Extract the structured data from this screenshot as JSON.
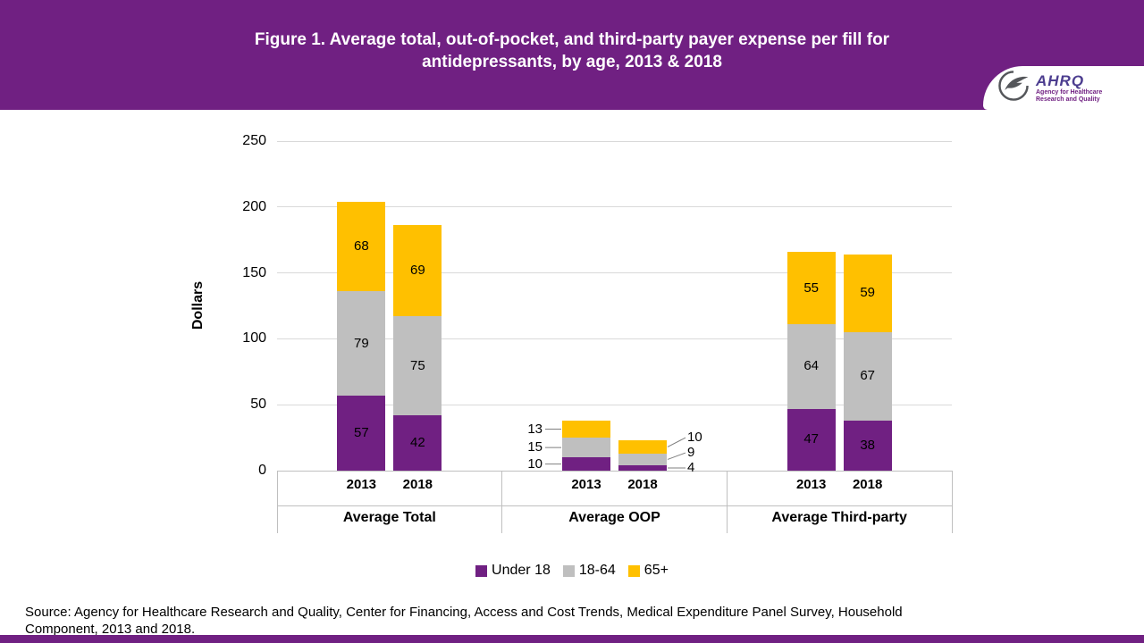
{
  "header": {
    "title_lines": [
      "Figure 1. Average total, out-of-pocket, and third-party payer expense per fill for",
      "antidepressants, by age, 2013 & 2018"
    ],
    "logo": {
      "name": "AHRQ",
      "tagline_lines": [
        "Agency for Healthcare",
        "Research and Quality"
      ]
    }
  },
  "chart_data": {
    "type": "bar",
    "stacked": true,
    "title": "Figure 1. Average total, out-of-pocket, and third-party payer expense per fill for antidepressants, by age, 2013 & 2018",
    "xlabel": "",
    "ylabel": "Dollars",
    "ylim": [
      0,
      250
    ],
    "yticks": [
      0,
      50,
      100,
      150,
      200,
      250
    ],
    "grid": true,
    "legend_position": "bottom",
    "series": [
      "Under 18",
      "18-64",
      "65+"
    ],
    "colors": [
      "#702082",
      "#BFBFBF",
      "#FFC000"
    ],
    "groups": [
      {
        "label": "Average Total",
        "bars": [
          {
            "category": "2013",
            "segments": [
              57,
              79,
              68
            ],
            "label_mode": "inside"
          },
          {
            "category": "2018",
            "segments": [
              42,
              75,
              69
            ],
            "label_mode": "inside"
          }
        ]
      },
      {
        "label": "Average OOP",
        "bars": [
          {
            "category": "2013",
            "segments": [
              10,
              15,
              13
            ],
            "label_mode": "callout-left"
          },
          {
            "category": "2018",
            "segments": [
              4,
              9,
              10
            ],
            "label_mode": "callout-right"
          }
        ]
      },
      {
        "label": "Average Third-party",
        "bars": [
          {
            "category": "2013",
            "segments": [
              47,
              64,
              55
            ],
            "label_mode": "inside"
          },
          {
            "category": "2018",
            "segments": [
              38,
              67,
              59
            ],
            "label_mode": "inside"
          }
        ]
      }
    ]
  },
  "legend": [
    {
      "label": "Under 18",
      "color": "#702082"
    },
    {
      "label": "18-64",
      "color": "#BFBFBF"
    },
    {
      "label": "65+",
      "color": "#FFC000"
    }
  ],
  "source": {
    "text": "Source: Agency for Healthcare Research and Quality, Center for Financing, Access and Cost Trends, Medical Expenditure Panel Survey, Household Component, 2013 and 2018."
  },
  "colors": {
    "banner": "#702082",
    "footer_strip": "#702082"
  }
}
